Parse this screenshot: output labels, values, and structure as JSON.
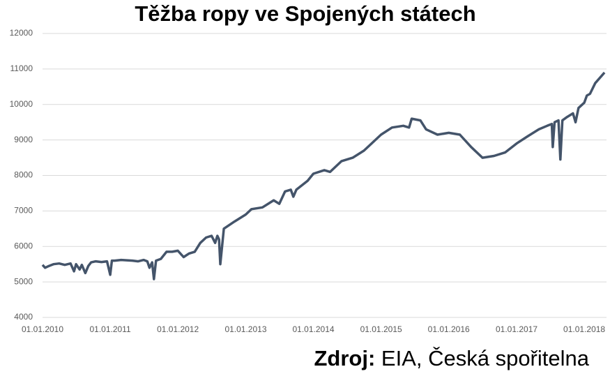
{
  "chart_data": {
    "type": "line",
    "title": "Těžba ropy ve Spojených státech",
    "source_label": "Zdroj:",
    "source": "EIA, Česká spořitelna",
    "x": [
      "2010-01-01",
      "2010-01-15",
      "2010-02-05",
      "2010-03-01",
      "2010-04-01",
      "2010-05-01",
      "2010-06-01",
      "2010-06-20",
      "2010-07-01",
      "2010-07-20",
      "2010-08-01",
      "2010-08-20",
      "2010-09-05",
      "2010-09-20",
      "2010-10-15",
      "2010-11-15",
      "2010-12-15",
      "2011-01-01",
      "2011-01-10",
      "2011-01-25",
      "2011-03-01",
      "2011-05-01",
      "2011-06-01",
      "2011-07-01",
      "2011-07-20",
      "2011-08-01",
      "2011-08-15",
      "2011-08-25",
      "2011-09-05",
      "2011-10-01",
      "2011-11-01",
      "2011-12-01",
      "2012-01-01",
      "2012-02-01",
      "2012-03-01",
      "2012-04-01",
      "2012-05-01",
      "2012-06-01",
      "2012-07-01",
      "2012-07-20",
      "2012-08-01",
      "2012-08-10",
      "2012-08-17",
      "2012-09-05",
      "2012-11-01",
      "2013-01-01",
      "2013-02-01",
      "2013-04-01",
      "2013-06-01",
      "2013-07-01",
      "2013-08-01",
      "2013-09-01",
      "2013-09-15",
      "2013-10-01",
      "2013-12-01",
      "2014-01-01",
      "2014-03-01",
      "2014-04-01",
      "2014-06-01",
      "2014-08-01",
      "2014-10-01",
      "2015-01-01",
      "2015-03-01",
      "2015-05-01",
      "2015-06-01",
      "2015-06-15",
      "2015-08-01",
      "2015-09-01",
      "2015-11-01",
      "2016-01-01",
      "2016-03-01",
      "2016-05-01",
      "2016-07-01",
      "2016-09-01",
      "2016-11-01",
      "2017-01-01",
      "2017-03-01",
      "2017-05-01",
      "2017-06-15",
      "2017-07-10",
      "2017-07-15",
      "2017-07-25",
      "2017-08-15",
      "2017-08-25",
      "2017-09-05",
      "2017-10-01",
      "2017-11-01",
      "2017-11-15",
      "2017-12-01",
      "2018-01-01",
      "2018-01-15",
      "2018-02-01",
      "2018-03-01",
      "2018-04-20"
    ],
    "series": [
      {
        "name": "Těžba ropy",
        "color": "#44546a",
        "values": [
          5480,
          5400,
          5450,
          5500,
          5520,
          5480,
          5520,
          5300,
          5500,
          5350,
          5480,
          5250,
          5450,
          5550,
          5580,
          5560,
          5580,
          5200,
          5600,
          5600,
          5620,
          5600,
          5580,
          5620,
          5580,
          5400,
          5550,
          5080,
          5600,
          5650,
          5850,
          5850,
          5880,
          5700,
          5800,
          5850,
          6100,
          6250,
          6300,
          6100,
          6300,
          6200,
          5500,
          6500,
          6700,
          6900,
          7050,
          7100,
          7300,
          7200,
          7550,
          7600,
          7400,
          7600,
          7850,
          8050,
          8150,
          8100,
          8400,
          8500,
          8700,
          9150,
          9350,
          9400,
          9350,
          9600,
          9550,
          9300,
          9150,
          9200,
          9150,
          8800,
          8500,
          8550,
          8650,
          8900,
          9100,
          9300,
          9400,
          9450,
          8800,
          9500,
          9550,
          8450,
          9550,
          9650,
          9750,
          9500,
          9900,
          10050,
          10250,
          10300,
          10600,
          10900
        ]
      }
    ],
    "xlim": [
      "2010-01-01",
      "2018-05-01"
    ],
    "xticks": [
      {
        "value": "2010-01-01",
        "label": "01.01.2010"
      },
      {
        "value": "2011-01-01",
        "label": "01.01.2011"
      },
      {
        "value": "2012-01-01",
        "label": "01.01.2012"
      },
      {
        "value": "2013-01-01",
        "label": "01.01.2013"
      },
      {
        "value": "2014-01-01",
        "label": "01.01.2014"
      },
      {
        "value": "2015-01-01",
        "label": "01.01.2015"
      },
      {
        "value": "2016-01-01",
        "label": "01.01.2016"
      },
      {
        "value": "2017-01-01",
        "label": "01.01.2017"
      },
      {
        "value": "2018-01-01",
        "label": "01.01.2018"
      }
    ],
    "ylim": [
      4000,
      12000
    ],
    "yticks": [
      4000,
      5000,
      6000,
      7000,
      8000,
      9000,
      10000,
      11000,
      12000
    ],
    "grid": true
  }
}
